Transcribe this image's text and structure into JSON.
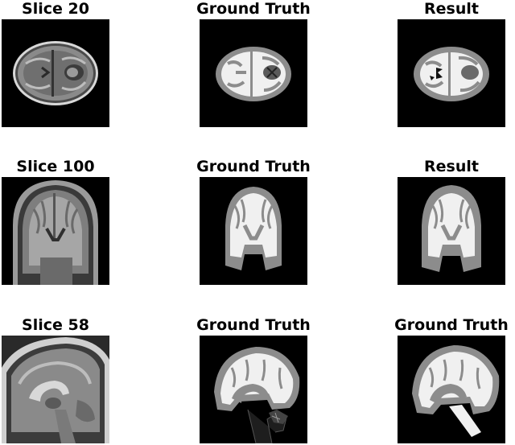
{
  "panels": [
    {
      "title": "Slice 20"
    },
    {
      "title": "Ground Truth"
    },
    {
      "title": "Result"
    },
    {
      "title": "Slice 100"
    },
    {
      "title": "Ground Truth"
    },
    {
      "title": "Result"
    },
    {
      "title": "Slice 58"
    },
    {
      "title": "Ground Truth"
    },
    {
      "title": "Ground Truth"
    }
  ]
}
